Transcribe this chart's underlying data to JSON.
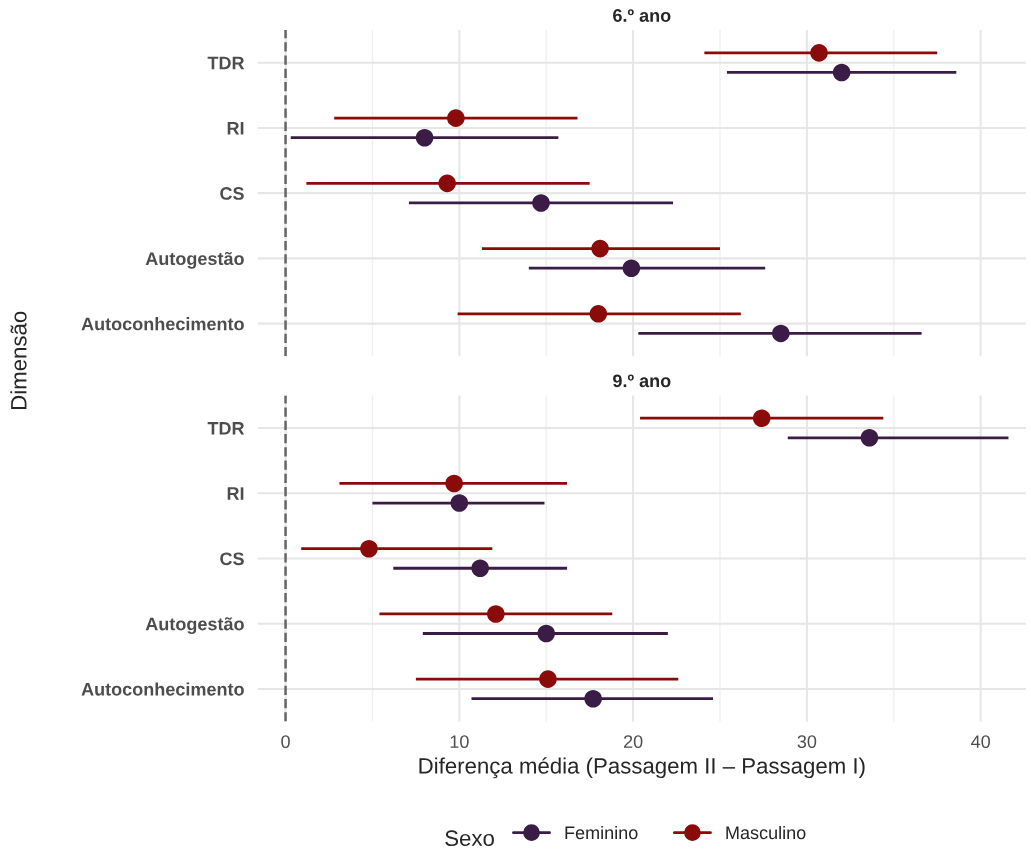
{
  "chart_data": [
    {
      "type": "scatter",
      "title": "6.º ano",
      "ylabel": "Dimensão",
      "legend": "bottom",
      "orientation": "horizontal",
      "categories": [
        "TDR",
        "RI",
        "CS",
        "Autogestão",
        "Autoconhecimento"
      ],
      "xlim": [
        -1.6,
        42.6
      ],
      "xticks": [
        0,
        10,
        20,
        30,
        40
      ],
      "tick_labels": "y",
      "grid": true,
      "marker": "circle",
      "ref_lines": [
        {
          "axis": "x",
          "value": 0,
          "color": "#666666",
          "line_style": "dashed"
        }
      ],
      "series": [
        {
          "name": "Feminino",
          "color": "#3b1c47",
          "values": [
            32.0,
            8.0,
            14.7,
            19.9,
            28.5
          ],
          "errors": [
            [
              25.4,
              38.6
            ],
            [
              0.3,
              15.7
            ],
            [
              7.1,
              22.3
            ],
            [
              14.0,
              27.6
            ],
            [
              20.3,
              36.6
            ]
          ]
        },
        {
          "name": "Masculino",
          "color": "#8b0a0a",
          "values": [
            30.7,
            9.8,
            9.3,
            18.1,
            18.0
          ],
          "errors": [
            [
              24.1,
              37.5
            ],
            [
              2.8,
              16.8
            ],
            [
              1.2,
              17.5
            ],
            [
              11.3,
              25.0
            ],
            [
              9.9,
              26.2
            ]
          ]
        }
      ]
    },
    {
      "type": "scatter",
      "title": "9.º ano",
      "xlabel": "Diferença média (Passagem II – Passagem I)",
      "legend_title": "Sexo",
      "legend": "bottom",
      "orientation": "horizontal",
      "categories": [
        "TDR",
        "RI",
        "CS",
        "Autogestão",
        "Autoconhecimento"
      ],
      "xlim": [
        -1.6,
        42.6
      ],
      "xticks": [
        0,
        10,
        20,
        30,
        40
      ],
      "grid": true,
      "marker": "circle",
      "ref_lines": [
        {
          "axis": "x",
          "value": 0,
          "color": "#666666",
          "line_style": "dashed"
        }
      ],
      "series": [
        {
          "name": "Feminino",
          "color": "#3b1c47",
          "values": [
            33.6,
            10.0,
            11.2,
            15.0,
            17.7
          ],
          "errors": [
            [
              28.9,
              41.6
            ],
            [
              5.0,
              14.9
            ],
            [
              6.2,
              16.2
            ],
            [
              7.9,
              22.0
            ],
            [
              10.7,
              24.6
            ]
          ]
        },
        {
          "name": "Masculino",
          "color": "#8b0a0a",
          "values": [
            27.4,
            9.7,
            4.8,
            12.1,
            15.1
          ],
          "errors": [
            [
              20.4,
              34.4
            ],
            [
              3.1,
              16.2
            ],
            [
              0.9,
              11.9
            ],
            [
              5.4,
              18.8
            ],
            [
              7.5,
              22.6
            ]
          ]
        }
      ]
    }
  ]
}
